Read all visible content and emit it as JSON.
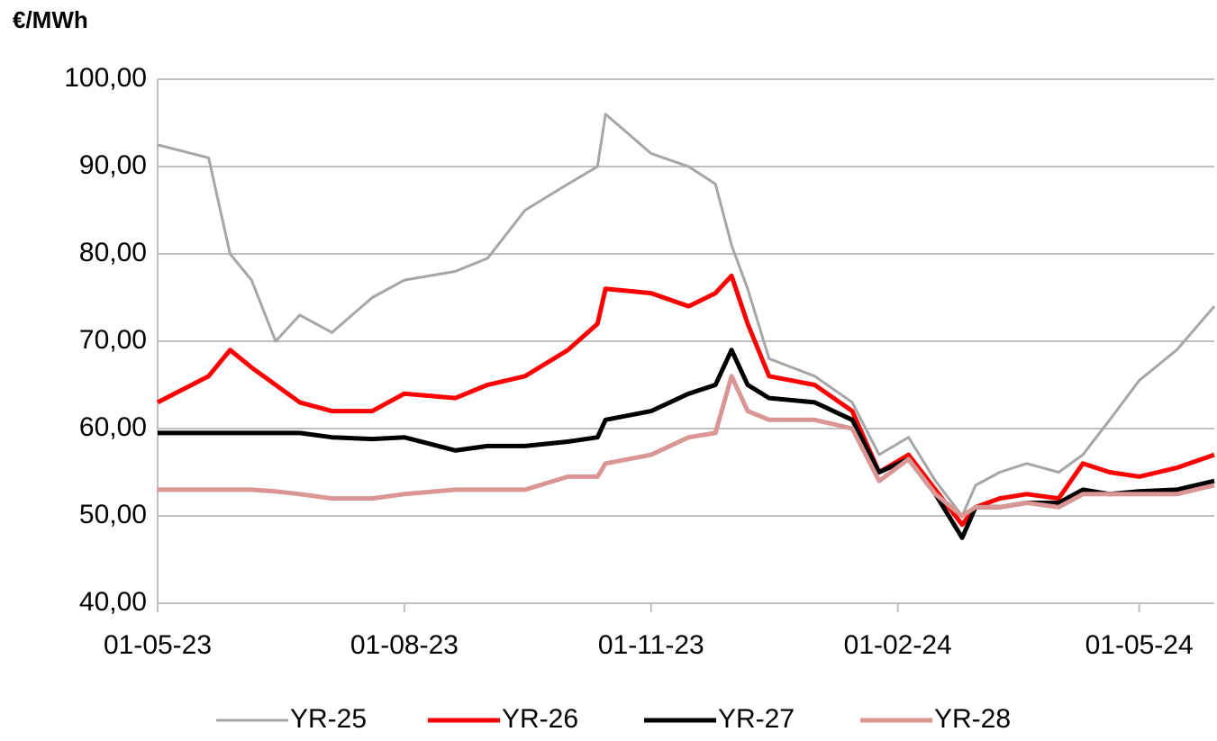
{
  "chart_data": {
    "type": "line",
    "ylabel": "€/MWh",
    "x": [
      "2023-05-01",
      "2023-05-20",
      "2023-05-28",
      "2023-06-05",
      "2023-06-14",
      "2023-06-23",
      "2023-07-05",
      "2023-07-20",
      "2023-08-01",
      "2023-08-20",
      "2023-09-01",
      "2023-09-15",
      "2023-10-01",
      "2023-10-12",
      "2023-10-15",
      "2023-11-01",
      "2023-11-15",
      "2023-11-25",
      "2023-12-01",
      "2023-12-07",
      "2023-12-15",
      "2024-01-01",
      "2024-01-15",
      "2024-01-25",
      "2024-02-05",
      "2024-02-15",
      "2024-02-25",
      "2024-03-01",
      "2024-03-10",
      "2024-03-20",
      "2024-04-01",
      "2024-04-10",
      "2024-04-20",
      "2024-05-01",
      "2024-05-15",
      "2024-05-29"
    ],
    "series": [
      {
        "name": "YR-25",
        "color": "#a6a6a6",
        "values": [
          92.5,
          91,
          80,
          77,
          70,
          73,
          71,
          75,
          77,
          78,
          79.5,
          85,
          88,
          90,
          96,
          91.5,
          90,
          88,
          81,
          76,
          68,
          66,
          63,
          57,
          59,
          54,
          50,
          53.5,
          55,
          56,
          55,
          57,
          61,
          65.5,
          69,
          74
        ]
      },
      {
        "name": "YR-26",
        "color": "#ff0000",
        "values": [
          63,
          66,
          69,
          67,
          65,
          63,
          62,
          62,
          64,
          63.5,
          65,
          66,
          69,
          72,
          76,
          75.5,
          74,
          75.5,
          77.5,
          72,
          66,
          65,
          62,
          55,
          57,
          53,
          49,
          51,
          52,
          52.5,
          52,
          56,
          55,
          54.5,
          55.5,
          57
        ]
      },
      {
        "name": "YR-27",
        "color": "#000000",
        "values": [
          59.5,
          59.5,
          59.5,
          59.5,
          59.5,
          59.5,
          59,
          58.8,
          59,
          57.5,
          58,
          58,
          58.5,
          59,
          61,
          62,
          64,
          65,
          69,
          65,
          63.5,
          63,
          61,
          55,
          56.5,
          52.5,
          47.5,
          51,
          51,
          51.5,
          51.5,
          53,
          52.5,
          52.8,
          53,
          54
        ]
      },
      {
        "name": "YR-28",
        "color": "#d99694",
        "values": [
          53,
          53,
          53,
          53,
          52.8,
          52.5,
          52,
          52,
          52.5,
          53,
          53,
          53,
          54.5,
          54.5,
          56,
          57,
          59,
          59.5,
          66,
          62,
          61,
          61,
          60,
          54,
          56.5,
          52.5,
          50,
          51,
          51,
          51.5,
          51,
          52.5,
          52.5,
          52.5,
          52.5,
          53.5
        ]
      }
    ],
    "xlim": [
      "2023-05-01",
      "2024-05-29"
    ],
    "xticks": [
      {
        "value": "2023-05-01",
        "label": "01-05-23"
      },
      {
        "value": "2023-08-01",
        "label": "01-08-23"
      },
      {
        "value": "2023-11-01",
        "label": "01-11-23"
      },
      {
        "value": "2024-02-01",
        "label": "01-02-24"
      },
      {
        "value": "2024-05-01",
        "label": "01-05-24"
      }
    ],
    "ylim": [
      40,
      100
    ],
    "yticks": [
      {
        "value": 40,
        "label": "40,00"
      },
      {
        "value": 50,
        "label": "50,00"
      },
      {
        "value": 60,
        "label": "60,00"
      },
      {
        "value": 70,
        "label": "70,00"
      },
      {
        "value": 80,
        "label": "80,00"
      },
      {
        "value": 90,
        "label": "90,00"
      },
      {
        "value": 100,
        "label": "100,00"
      }
    ],
    "grid": true,
    "legend": "bottom"
  }
}
